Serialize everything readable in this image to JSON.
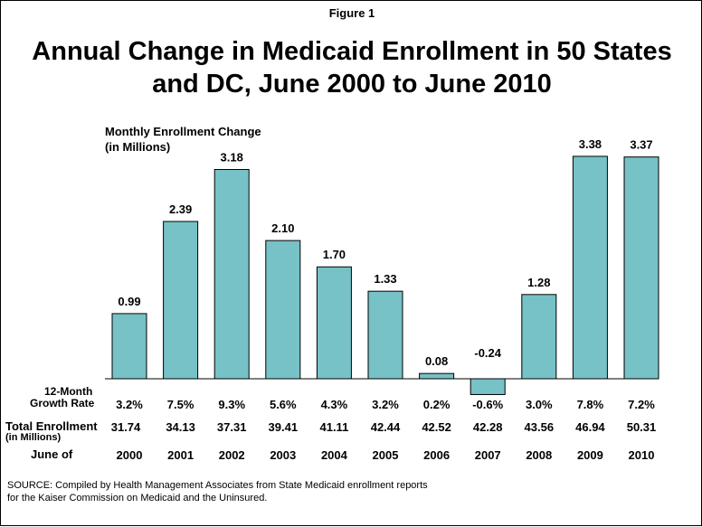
{
  "figure_label": "Figure 1",
  "title_line1": "Annual Change in Medicaid Enrollment in 50 States",
  "title_line2": "and DC, June 2000 to June 2010",
  "source_line1": "SOURCE: Compiled by Health Management Associates from State Medicaid enrollment reports",
  "source_line2": "for the Kaiser Commission on Medicaid and the Uninsured.",
  "colors": {
    "bar": "#76c2c6",
    "border": "#000000"
  },
  "chart_data": {
    "type": "bar",
    "ylabel_line1": "Monthly Enrollment Change",
    "ylabel_line2": "(in Millions)",
    "categories": [
      "2000",
      "2001",
      "2002",
      "2003",
      "2004",
      "2005",
      "2006",
      "2007",
      "2008",
      "2009",
      "2010"
    ],
    "values": [
      0.99,
      2.39,
      3.18,
      2.1,
      1.7,
      1.33,
      0.08,
      -0.24,
      1.28,
      3.38,
      3.37
    ],
    "value_labels": [
      "0.99",
      "2.39",
      "3.18",
      "2.10",
      "1.70",
      "1.33",
      "0.08",
      "-0.24",
      "1.28",
      "3.38",
      "3.37"
    ],
    "growth_rate_label_line1": "12-Month",
    "growth_rate_label_line2": "Growth Rate",
    "growth_rates": [
      "3.2%",
      "7.5%",
      "9.3%",
      "5.6%",
      "4.3%",
      "3.2%",
      "0.2%",
      "-0.6%",
      "3.0%",
      "7.8%",
      "7.2%"
    ],
    "total_enrollment_label_line1": "Total Enrollment",
    "total_enrollment_label_line2": "(in Millions)",
    "total_enrollment": [
      "31.74",
      "34.13",
      "37.31",
      "39.41",
      "41.11",
      "42.44",
      "42.52",
      "42.28",
      "43.56",
      "46.94",
      "50.31"
    ],
    "x_row_label": "June of",
    "grid": false,
    "legend": "none"
  }
}
